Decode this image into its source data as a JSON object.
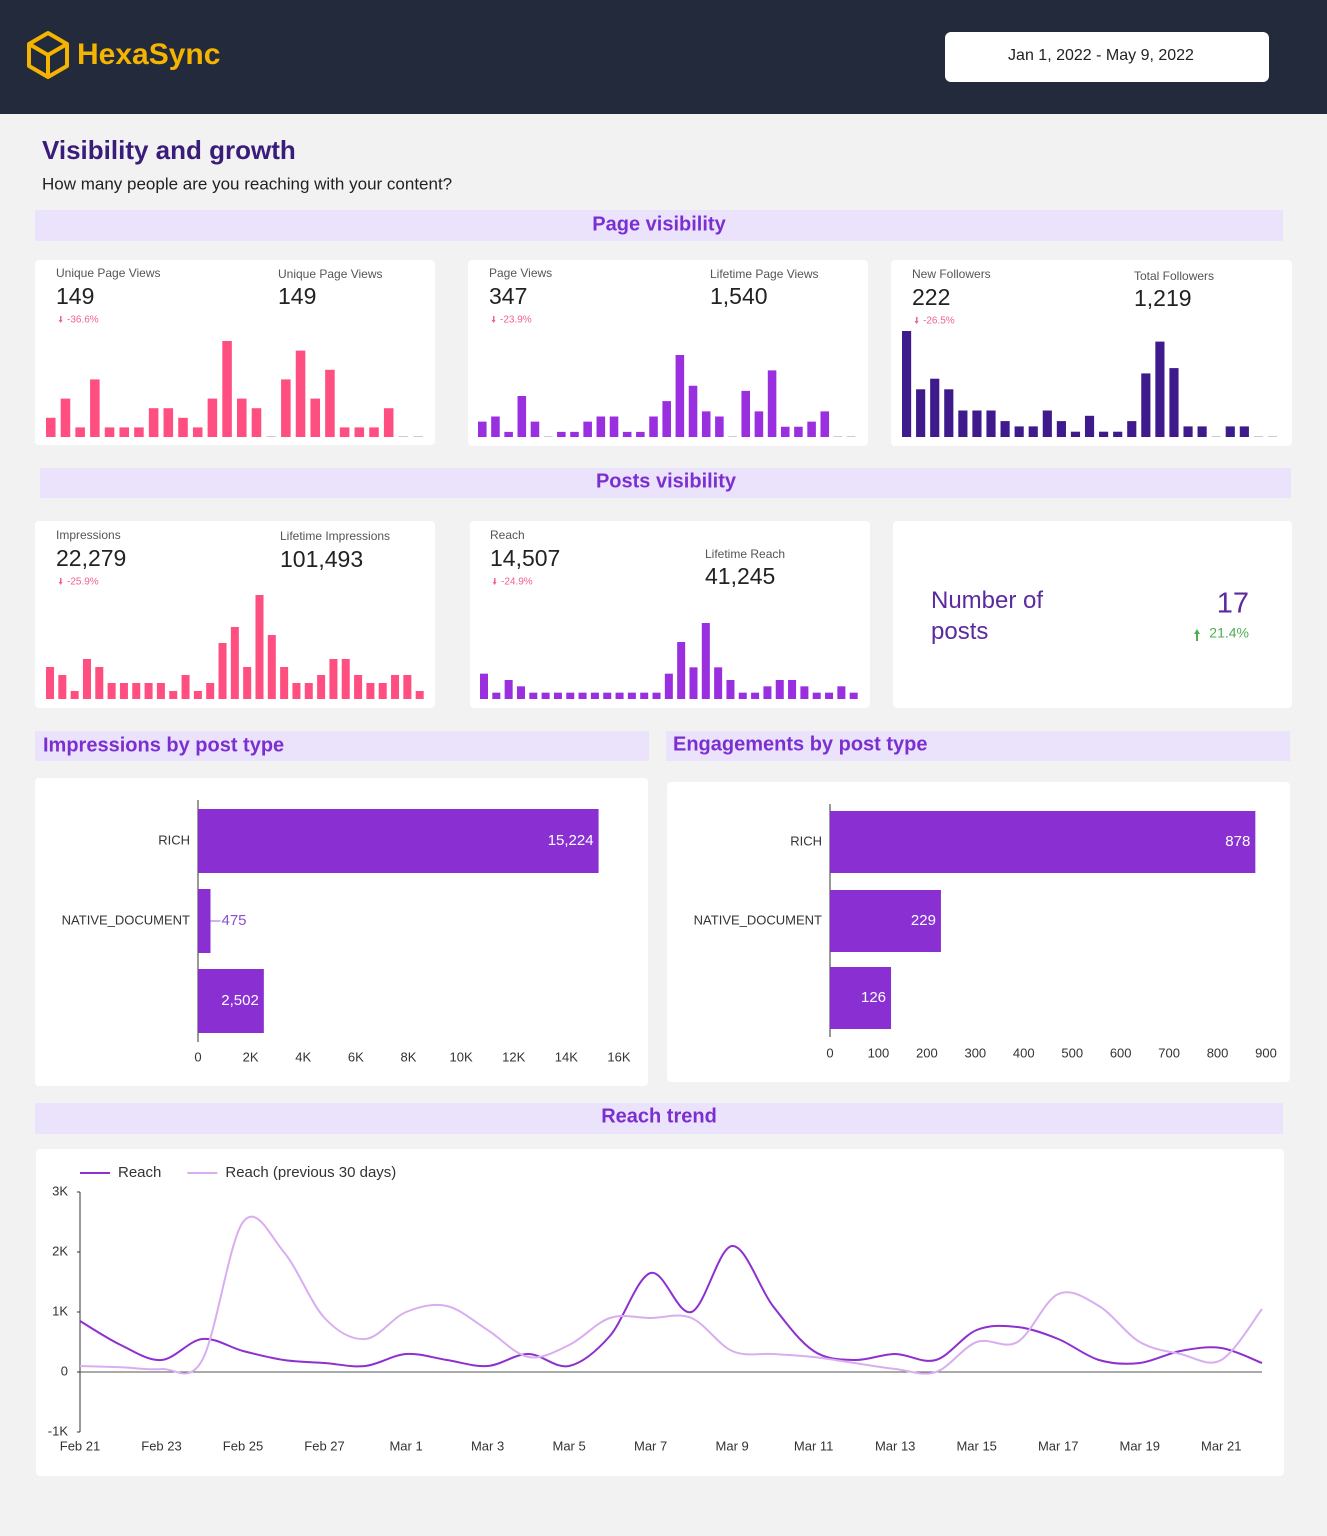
{
  "header": {
    "logo": "HexaSync",
    "date_range": "Jan 1, 2022 - May 9, 2022"
  },
  "page": {
    "title": "Visibility and growth",
    "subtitle": "How many people are you reaching with your content?"
  },
  "sections": [
    "Page visibility",
    "Posts visibility"
  ],
  "kpi_cards": [
    {
      "label": "Unique Page Views",
      "value": "149",
      "change": "-36.6%",
      "total_label": "Unique Page Views",
      "total": "149"
    },
    {
      "label": "Page Views",
      "value": "347",
      "change": "-23.9%",
      "total_label": "Lifetime Page Views",
      "total": "1,540"
    },
    {
      "label": "New Followers",
      "value": "222",
      "change": "-26.5%",
      "total_label": "Total Followers",
      "total": "1,219"
    },
    {
      "label": "Impressions",
      "value": "22,279",
      "change": "-25.9%",
      "total_label": "Lifetime Impressions",
      "total": "101,493"
    },
    {
      "label": "Reach",
      "value": "14,507",
      "change": "-24.9%",
      "total_label": "Lifetime Reach",
      "total": "41,245"
    }
  ],
  "posts_card": {
    "label": "Number of posts",
    "value": "17",
    "change": "21.4%"
  },
  "chart_data": [
    {
      "type": "bar",
      "color": "#ff4f81",
      "values": [
        2,
        4,
        1,
        6,
        1,
        1,
        1,
        3,
        3,
        2,
        1,
        4,
        10,
        4,
        3,
        0,
        6,
        9,
        4,
        7,
        1,
        1,
        1,
        3,
        0,
        0
      ]
    },
    {
      "type": "bar",
      "color": "#9a2fe0",
      "values": [
        3,
        4,
        1,
        8,
        3,
        0,
        1,
        1,
        3,
        4,
        4,
        1,
        1,
        4,
        7,
        16,
        10,
        5,
        4,
        0,
        9,
        5,
        13,
        2,
        2,
        3,
        5,
        0,
        0
      ]
    },
    {
      "type": "bar",
      "color": "#3e1a8c",
      "values": [
        20,
        9,
        11,
        9,
        5,
        5,
        5,
        3,
        2,
        2,
        5,
        3,
        1,
        4,
        1,
        1,
        3,
        12,
        18,
        13,
        2,
        2,
        0,
        2,
        2,
        0,
        0
      ]
    },
    {
      "type": "bar",
      "color": "#ff4f81",
      "values": [
        4,
        3,
        1,
        5,
        4,
        2,
        2,
        2,
        2,
        2,
        1,
        3,
        1,
        2,
        7,
        9,
        4,
        13,
        8,
        4,
        2,
        2,
        3,
        5,
        5,
        3,
        2,
        2,
        3,
        3,
        1
      ]
    },
    {
      "type": "bar",
      "color": "#9a2fe0",
      "values": [
        4,
        1,
        3,
        2,
        1,
        1,
        1,
        1,
        1,
        1,
        1,
        1,
        1,
        1,
        1,
        4,
        9,
        5,
        12,
        5,
        3,
        1,
        1,
        2,
        3,
        3,
        2,
        1,
        1,
        2,
        1
      ]
    },
    {
      "type": "hbar",
      "title": "Impressions by post type",
      "color": "#8a2fd1",
      "categories": [
        "RICH",
        "NATIVE_DOCUMENT",
        null
      ],
      "values": [
        15224,
        475,
        2502
      ],
      "value_labels": [
        "15,224",
        "475",
        "2,502"
      ],
      "xlim": [
        0,
        16000
      ],
      "xticks": [
        0,
        {
          "value": 2000,
          "label": "2K"
        },
        {
          "value": 4000,
          "label": "4K"
        },
        {
          "value": 6000,
          "label": "6K"
        },
        {
          "value": 8000,
          "label": "8K"
        },
        {
          "value": 10000,
          "label": "10K"
        },
        {
          "value": 12000,
          "label": "12K"
        },
        {
          "value": 14000,
          "label": "14K"
        },
        {
          "value": 16000,
          "label": "16K"
        }
      ]
    },
    {
      "type": "hbar",
      "title": "Engagements by post type",
      "color": "#8a2fd1",
      "categories": [
        "RICH",
        "NATIVE_DOCUMENT",
        null
      ],
      "values": [
        878,
        229,
        126
      ],
      "xlim": [
        0,
        900
      ],
      "xticks": [
        0,
        100,
        200,
        300,
        400,
        500,
        600,
        700,
        800,
        900
      ]
    },
    {
      "type": "line",
      "title": "Reach trend",
      "categories": [
        "Feb 21",
        null,
        "Feb 23",
        null,
        "Feb 25",
        null,
        "Feb 27",
        null,
        "Mar 1",
        null,
        "Mar 3",
        null,
        "Mar 5",
        null,
        "Mar 7",
        null,
        "Mar 9",
        null,
        "Mar 11",
        null,
        "Mar 13",
        null,
        "Mar 15",
        null,
        "Mar 17",
        null,
        "Mar 19",
        null,
        "Mar 21",
        null
      ],
      "series": [
        {
          "name": "Reach",
          "color": "#8e2fd0",
          "values": [
            850,
            450,
            200,
            550,
            350,
            200,
            150,
            100,
            300,
            200,
            100,
            300,
            100,
            600,
            1650,
            1000,
            2100,
            1100,
            350,
            200,
            300,
            200,
            700,
            750,
            550,
            200,
            150,
            350,
            400,
            150
          ]
        },
        {
          "name": "Reach (previous 30 days)",
          "color": "#d9aef0",
          "values": [
            100,
            80,
            50,
            200,
            2500,
            2000,
            900,
            550,
            1000,
            1100,
            700,
            250,
            450,
            900,
            900,
            900,
            350,
            300,
            250,
            150,
            50,
            0,
            500,
            500,
            1300,
            1100,
            500,
            300,
            200,
            1050
          ]
        }
      ],
      "ylim": [
        -1000,
        3000
      ],
      "yticks": [
        {
          "value": -1000,
          "label": "-1K"
        },
        0,
        {
          "value": 1000,
          "label": "1K"
        },
        {
          "value": 2000,
          "label": "2K"
        },
        {
          "value": 3000,
          "label": "3K"
        }
      ],
      "legend": "top-left"
    }
  ]
}
